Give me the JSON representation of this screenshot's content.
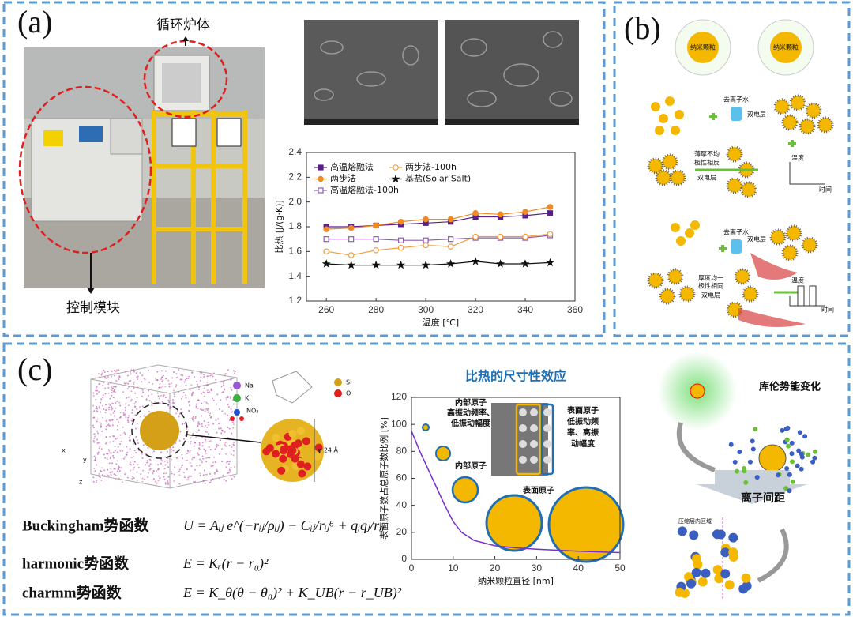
{
  "panels": {
    "a": "(a)",
    "b": "(b)",
    "c": "(c)"
  },
  "panel_a": {
    "furnace_label": "循环炉体",
    "control_label": "控制模块"
  },
  "panel_b": {
    "particle_labels": [
      "纳米颗粒",
      "纳米颗粒"
    ],
    "upper": {
      "water": "去离子水",
      "edl": "双电层",
      "uneven": [
        "薄厚不均",
        "极性相反"
      ],
      "edl2": "双电层",
      "temp": "温度",
      "time": "时间"
    },
    "lower": {
      "water": "去离子水",
      "edl": "双电层",
      "uniform": [
        "厚度均一",
        "极性相同"
      ],
      "edl2": "双电层",
      "temp": "温度",
      "time": "时间"
    }
  },
  "panel_c": {
    "legend_left": [
      "Na",
      "K",
      "NO₃"
    ],
    "legend_right": [
      "Si",
      "O"
    ],
    "diameter": "φ 24 Å",
    "axes": [
      "x",
      "y",
      "z"
    ],
    "potentials": [
      {
        "name": "Buckingham势函数",
        "formula": "U = Aᵢⱼ e^(−rᵢⱼ/ρᵢⱼ) − Cᵢⱼ/rᵢⱼ⁶ + qᵢqⱼ/rᵢⱼ"
      },
      {
        "name": "harmonic势函数",
        "formula": "E = Kᵣ(r − r₀)²"
      },
      {
        "name": "charmm势函数",
        "formula": "E = K_θ(θ − θ₀)² + K_UB(r − r_UB)²"
      }
    ],
    "inner_atoms": [
      "内部原子",
      "高振动频率、",
      "低振动幅度"
    ],
    "surface_atoms": [
      "表面原子",
      "低振动频",
      "率、高振",
      "动幅度"
    ],
    "inner_label": "内部原子",
    "surface_label": "表面原子",
    "coulomb": "库伦势能变化",
    "spacing": "离子间距",
    "compressed": "压缩层内区域"
  },
  "chart_data": [
    {
      "type": "line",
      "xlabel": "温度 [℃]",
      "ylabel": "比热 [J/(g·K)]",
      "x": [
        260,
        270,
        280,
        290,
        300,
        310,
        320,
        330,
        340,
        350
      ],
      "xlim": [
        252,
        360
      ],
      "xticks": [
        260,
        280,
        300,
        320,
        340,
        360
      ],
      "ylim": [
        1.2,
        2.4
      ],
      "yticks": [
        1.2,
        1.4,
        1.6,
        1.8,
        {
          "value": 2,
          "label": "2.0"
        },
        2.2,
        2.4
      ],
      "series": [
        {
          "name": "高温熔融法",
          "color": "#5a1f8c",
          "marker": "square",
          "open": false,
          "values": [
            1.8,
            1.8,
            1.81,
            1.82,
            1.83,
            1.84,
            1.88,
            1.88,
            1.89,
            1.91
          ]
        },
        {
          "name": "两步法",
          "color": "#f08a24",
          "marker": "circle",
          "open": false,
          "values": [
            1.78,
            1.79,
            1.81,
            1.84,
            1.86,
            1.86,
            1.91,
            1.9,
            1.92,
            1.96
          ]
        },
        {
          "name": "高温熔融法-100h",
          "color": "#8e5bb5",
          "marker": "square",
          "open": true,
          "values": [
            1.7,
            1.7,
            1.7,
            1.69,
            1.69,
            1.7,
            1.71,
            1.71,
            1.71,
            1.73
          ]
        },
        {
          "name": "两步法-100h",
          "color": "#f0a040",
          "marker": "circle",
          "open": true,
          "values": [
            1.6,
            1.57,
            1.61,
            1.63,
            1.65,
            1.64,
            1.72,
            1.72,
            1.72,
            1.74
          ]
        },
        {
          "name": "基盐(Solar Salt)",
          "color": "#111111",
          "marker": "star",
          "open": false,
          "values": [
            1.5,
            1.49,
            1.49,
            1.49,
            1.49,
            1.5,
            1.52,
            1.5,
            1.5,
            1.51
          ]
        }
      ]
    },
    {
      "type": "line",
      "title": "比热的尺寸性效应",
      "xlabel": "纳米颗粒直径 [nm]",
      "ylabel": "表面原子数占总原子数比例 [%]",
      "x": [
        0,
        2,
        5,
        8,
        10,
        12,
        15,
        20,
        25,
        30,
        40,
        50
      ],
      "values": [
        95,
        80,
        60,
        40,
        28,
        20,
        14,
        10,
        8.5,
        7.5,
        6,
        5
      ],
      "color": "#7b2fd0",
      "xlim": [
        0,
        50
      ],
      "xticks": [
        0,
        10,
        20,
        30,
        40,
        50
      ],
      "ylim": [
        0,
        120
      ],
      "yticks": [
        0,
        20,
        40,
        60,
        80,
        100,
        120
      ]
    }
  ]
}
